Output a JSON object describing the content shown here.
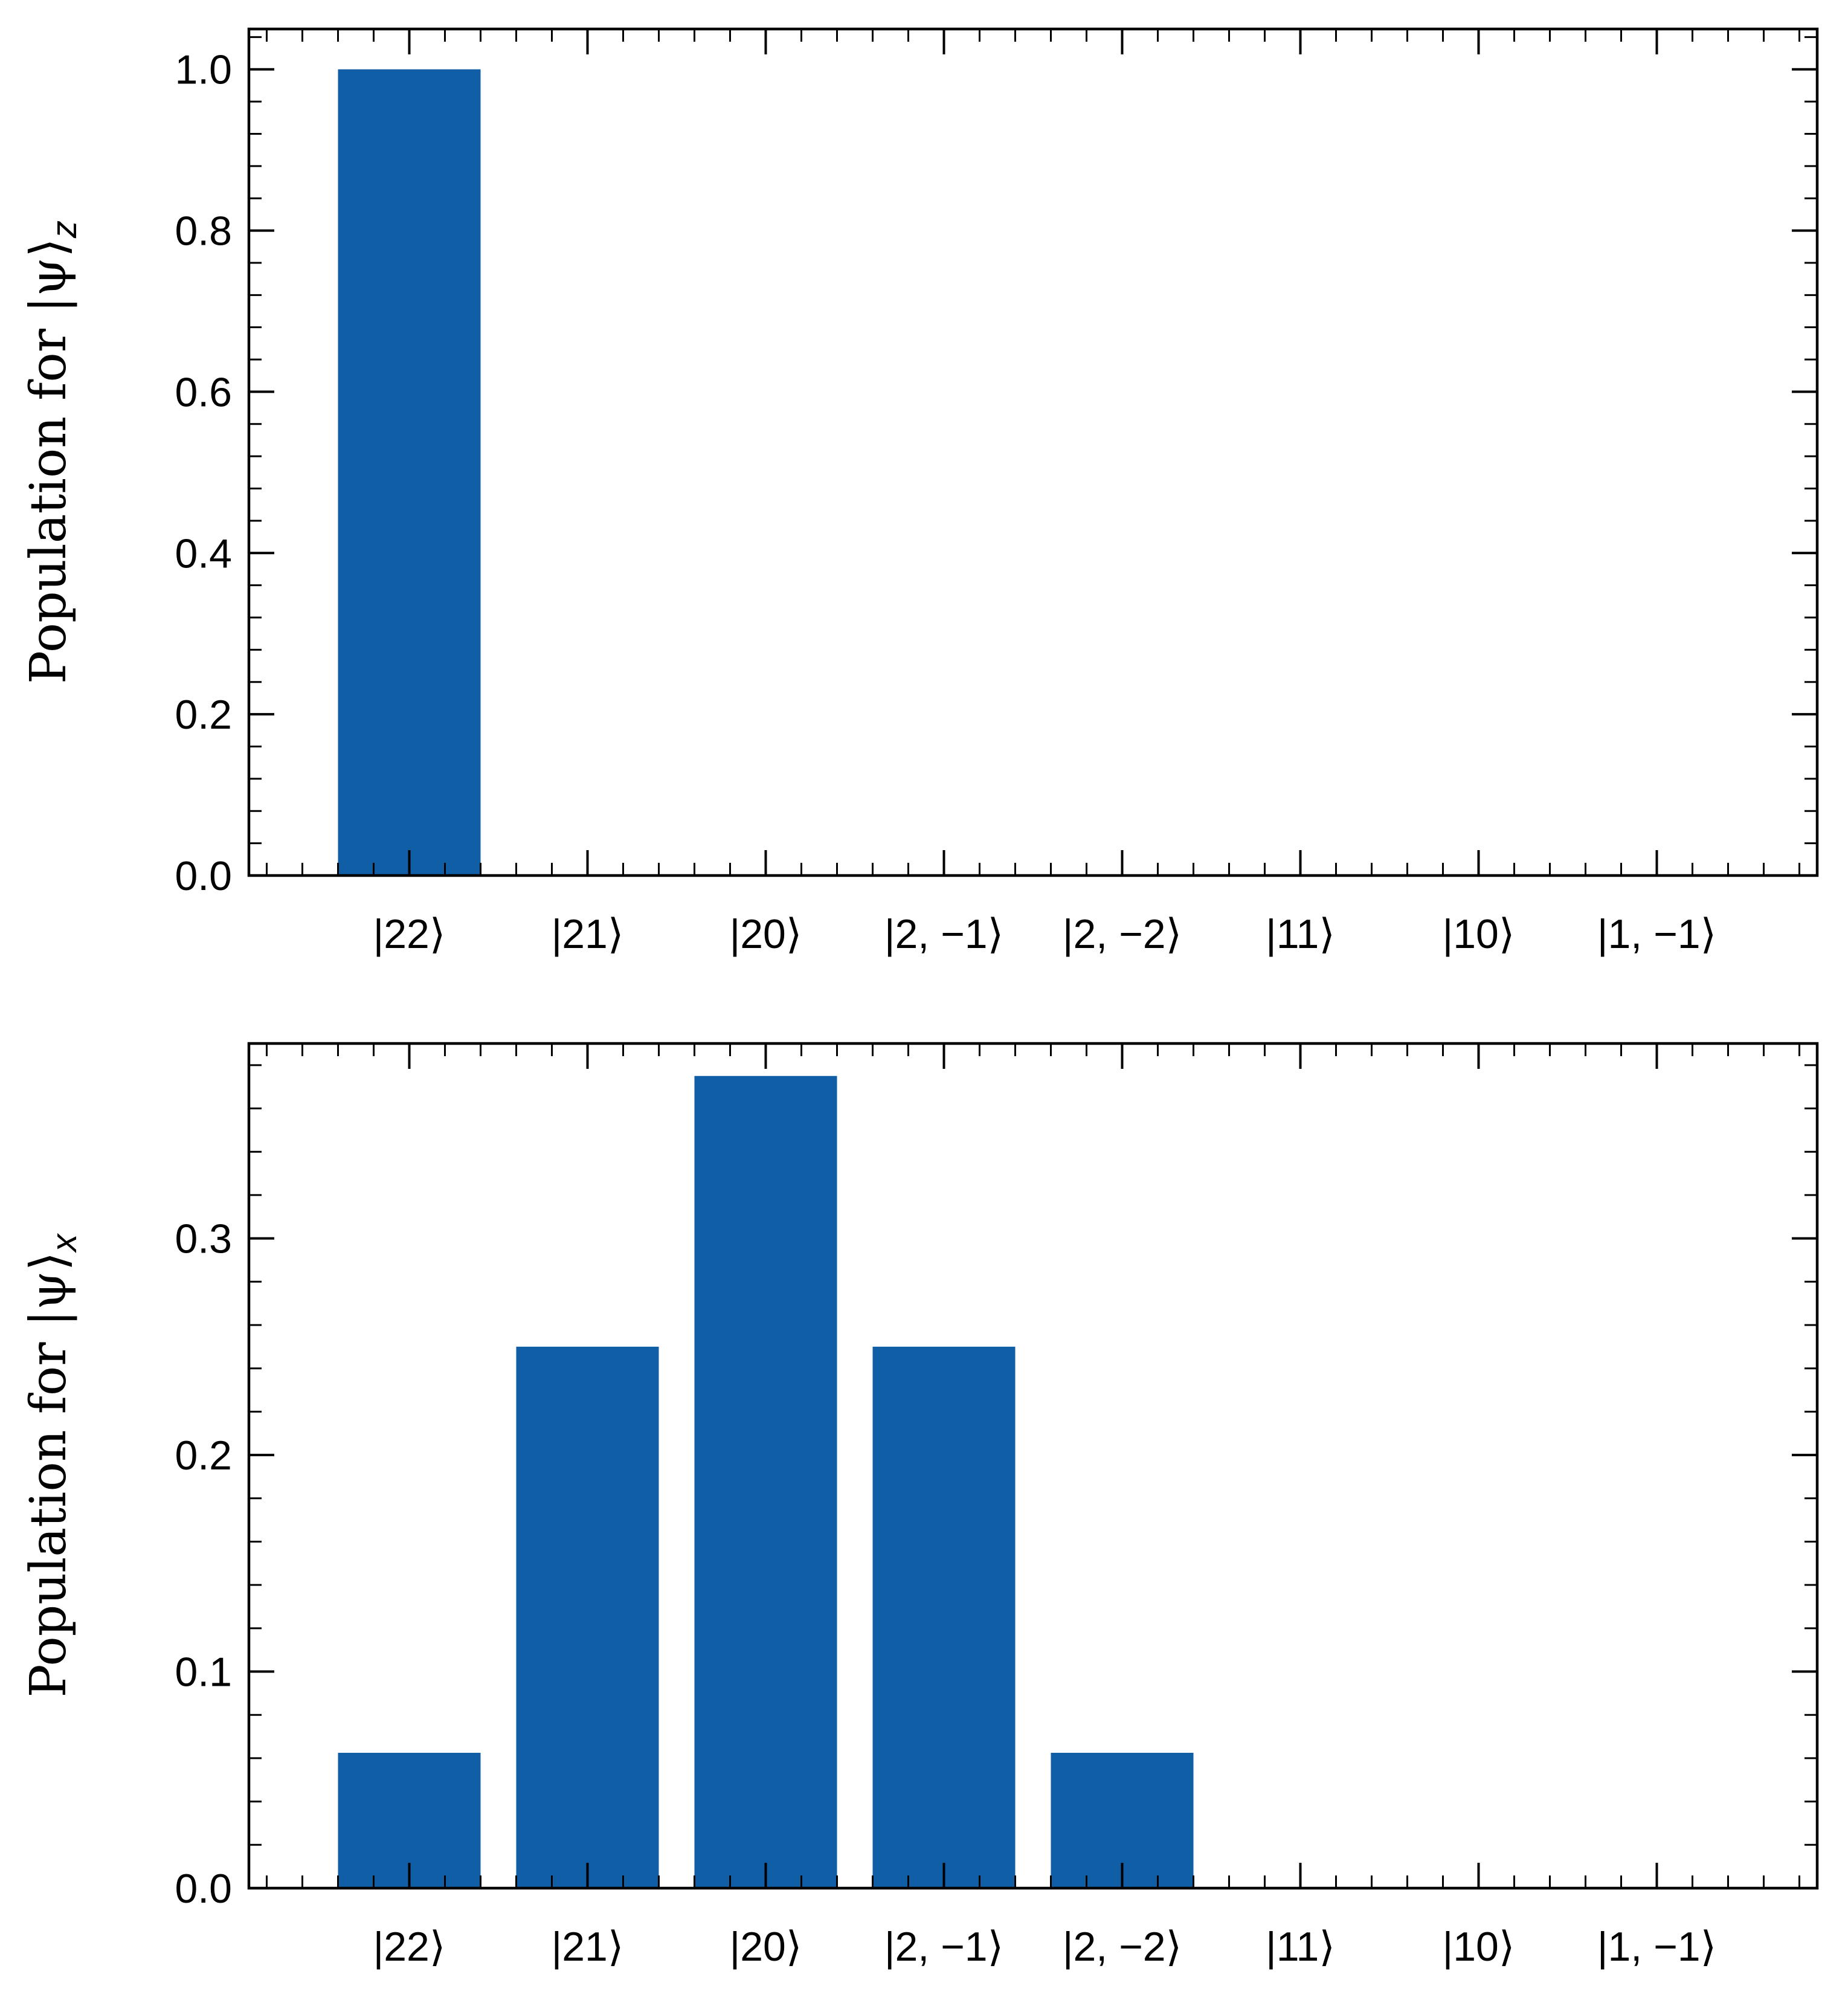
{
  "chart_data": [
    {
      "type": "bar",
      "categories": [
        "|22⟩",
        "|21⟩",
        "|20⟩",
        "|2, −1⟩",
        "|2, −2⟩",
        "|11⟩",
        "|10⟩",
        "|1, −1⟩"
      ],
      "values": [
        1.0,
        0,
        0,
        0,
        0,
        0,
        0,
        0
      ],
      "ylabel": "Population for |ψ⟩",
      "ylabel_subscript": "z",
      "ylim": [
        0,
        1.05
      ],
      "yticks": [
        0.0,
        0.2,
        0.4,
        0.6,
        0.8,
        1.0
      ],
      "ytick_labels": [
        "0.0",
        "0.2",
        "0.4",
        "0.6",
        "0.8",
        "1.0"
      ],
      "color": "#0f5ea6",
      "grid": false
    },
    {
      "type": "bar",
      "categories": [
        "|22⟩",
        "|21⟩",
        "|20⟩",
        "|2, −1⟩",
        "|2, −2⟩",
        "|11⟩",
        "|10⟩",
        "|1, −1⟩"
      ],
      "values": [
        0.0625,
        0.25,
        0.375,
        0.25,
        0.0625,
        0,
        0,
        0
      ],
      "ylabel": "Population for |ψ⟩",
      "ylabel_subscript": "x",
      "ylim": [
        0,
        0.39
      ],
      "yticks": [
        0.0,
        0.1,
        0.2,
        0.3
      ],
      "ytick_labels": [
        "0.0",
        "0.1",
        "0.2",
        "0.3"
      ],
      "color": "#0f5ea6",
      "grid": false
    }
  ]
}
